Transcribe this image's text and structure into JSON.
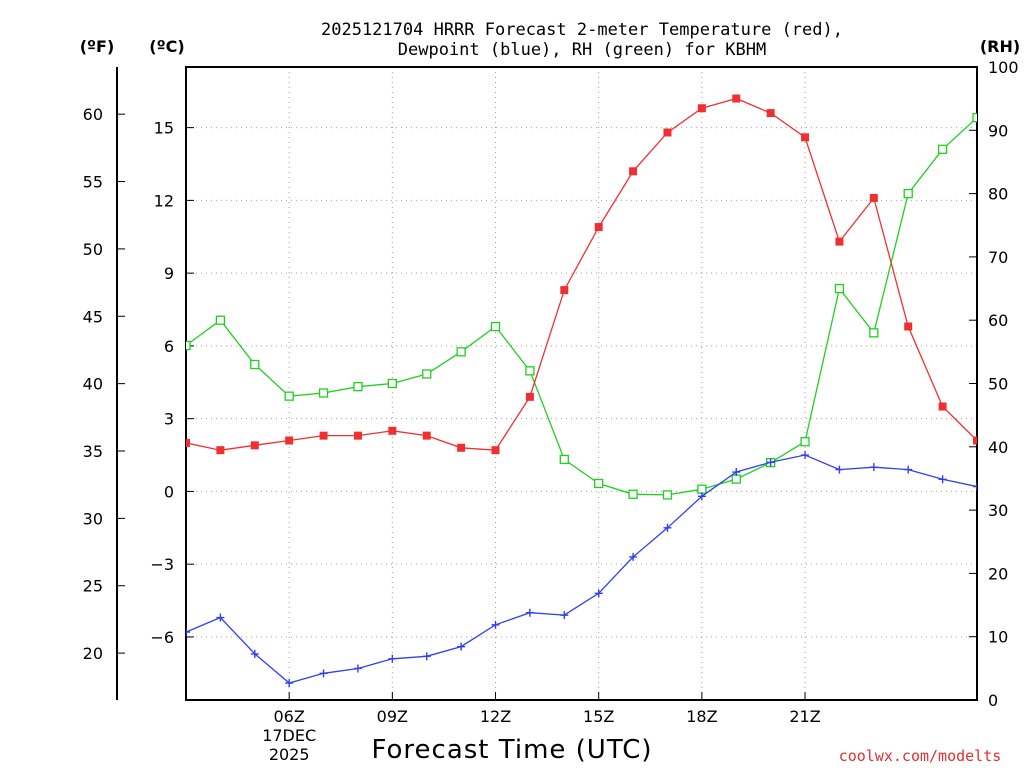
{
  "chart_data": {
    "type": "line",
    "title_line1": "2025121704 HRRR Forecast 2-meter Temperature (red),",
    "title_line2": "Dewpoint (blue), RH (green) for KBHM",
    "xlabel": "Forecast Time (UTC)",
    "credit": "coolwx.com/modelts",
    "unit_f": "(ºF)",
    "unit_c": "(ºC)",
    "unit_rh": "(RH)",
    "hours": [
      5,
      6,
      7,
      8,
      9,
      10,
      11,
      12,
      13,
      14,
      15,
      16,
      17,
      18,
      19,
      20,
      21,
      22,
      23,
      24,
      25,
      26,
      27,
      28
    ],
    "xlim": [
      5,
      28
    ],
    "x_ticks": [
      {
        "hour": 8,
        "label": "06Z",
        "label2": "17DEC",
        "label3": "2025"
      },
      {
        "hour": 11,
        "label": "09Z"
      },
      {
        "hour": 14,
        "label": "12Z"
      },
      {
        "hour": 17,
        "label": "15Z"
      },
      {
        "hour": 20,
        "label": "18Z"
      },
      {
        "hour": 23,
        "label": "21Z"
      }
    ],
    "ylim_c": [
      -8.6,
      17.5
    ],
    "yticks_c": [
      {
        "v": 15,
        "label": "15"
      },
      {
        "v": 12,
        "label": "12"
      },
      {
        "v": 9,
        "label": "9"
      },
      {
        "v": 6,
        "label": "6"
      },
      {
        "v": 3,
        "label": "3"
      },
      {
        "v": 0,
        "label": "0"
      },
      {
        "v": -3,
        "label": "−3"
      },
      {
        "v": -6,
        "label": "−6"
      }
    ],
    "yticks_f": [
      "60",
      "55",
      "50",
      "45",
      "40",
      "35",
      "30",
      "25",
      "20"
    ],
    "yticks_f_values": [
      60,
      55,
      50,
      45,
      40,
      35,
      30,
      25,
      20
    ],
    "ylim_rh": [
      0,
      100
    ],
    "yticks_rh": [
      "100",
      "90",
      "80",
      "70",
      "60",
      "50",
      "40",
      "30",
      "20",
      "10",
      "0"
    ],
    "yticks_rh_values": [
      100,
      90,
      80,
      70,
      60,
      50,
      40,
      30,
      20,
      10,
      0
    ],
    "series": [
      {
        "name": "Temperature (°C)",
        "color": "#f03030",
        "marker": "filled-square",
        "axis": "c",
        "values": [
          2.0,
          1.7,
          1.9,
          2.1,
          2.3,
          2.3,
          2.5,
          2.3,
          1.8,
          1.7,
          3.9,
          8.3,
          10.9,
          13.2,
          14.8,
          15.8,
          16.2,
          15.6,
          14.6,
          10.3,
          12.1,
          6.8,
          3.5,
          2.1
        ]
      },
      {
        "name": "Dewpoint (°C)",
        "color": "#3040f0",
        "marker": "plus",
        "axis": "c",
        "values": [
          -5.8,
          -5.2,
          -6.7,
          -7.9,
          -7.5,
          -7.3,
          -6.9,
          -6.8,
          -6.4,
          -5.5,
          -5.0,
          -5.1,
          -4.2,
          -2.7,
          -1.5,
          -0.2,
          0.8,
          1.2,
          1.5,
          0.9,
          1.0,
          0.9,
          0.5,
          0.2
        ]
      },
      {
        "name": "RH (%)",
        "color": "#20d020",
        "marker": "open-square",
        "axis": "rh",
        "values": [
          56,
          60,
          53,
          48,
          48.5,
          49.5,
          50,
          51.5,
          55,
          59,
          52,
          38,
          34.2,
          32.5,
          32.4,
          33.3,
          34.9,
          37.5,
          40.8,
          65,
          58,
          80,
          87,
          92
        ]
      }
    ]
  }
}
